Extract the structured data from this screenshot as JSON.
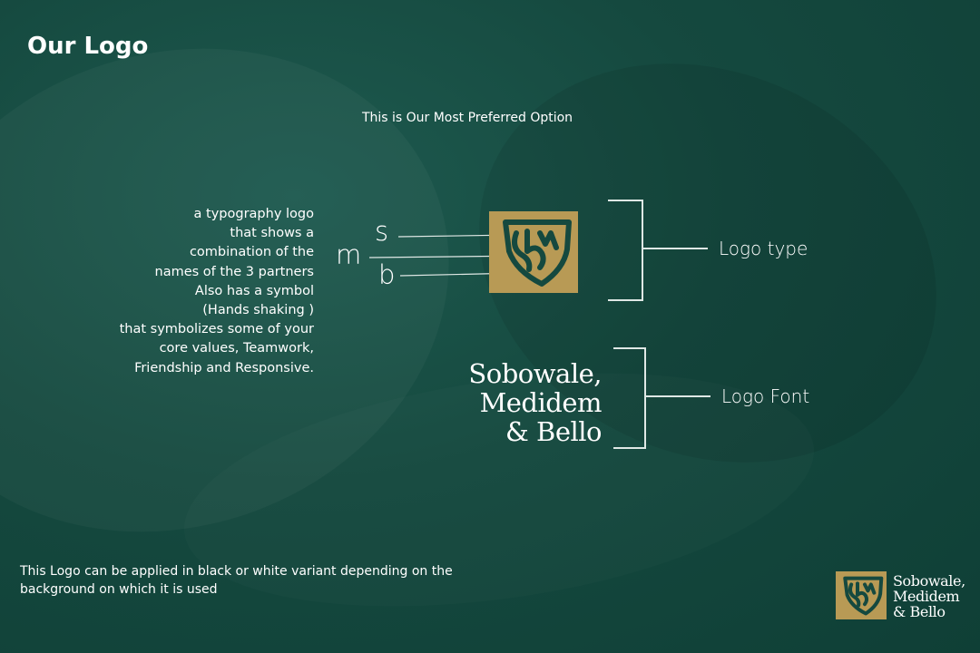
{
  "title": "Our Logo",
  "subtitle": "This is Our Most Preferred Option",
  "description_lines": [
    "a typography logo",
    "that shows a",
    "combination of the",
    "names of the 3 partners",
    "Also has a symbol",
    "(Hands shaking )",
    "that symbolizes some of your",
    "core values, Teamwork,",
    "Friendship and Responsive."
  ],
  "letters": {
    "s": "s",
    "m": "m",
    "b": "b"
  },
  "labels": {
    "logo_type": "Logo type",
    "logo_font": "Logo Font"
  },
  "wordmark_lines": [
    "Sobowale,",
    "Medidem",
    "& Bello"
  ],
  "note_lines": [
    "This Logo can be applied in black or white variant depending on the",
    "background on which it is used"
  ],
  "corner_wordmark_lines": [
    "Sobowale,",
    "Medidem",
    "& Bello"
  ],
  "colors": {
    "background": "#15493f",
    "gold": "#b89a55",
    "text": "#ffffff"
  },
  "icons": {
    "logo_mark": "shield-monogram-icon"
  }
}
